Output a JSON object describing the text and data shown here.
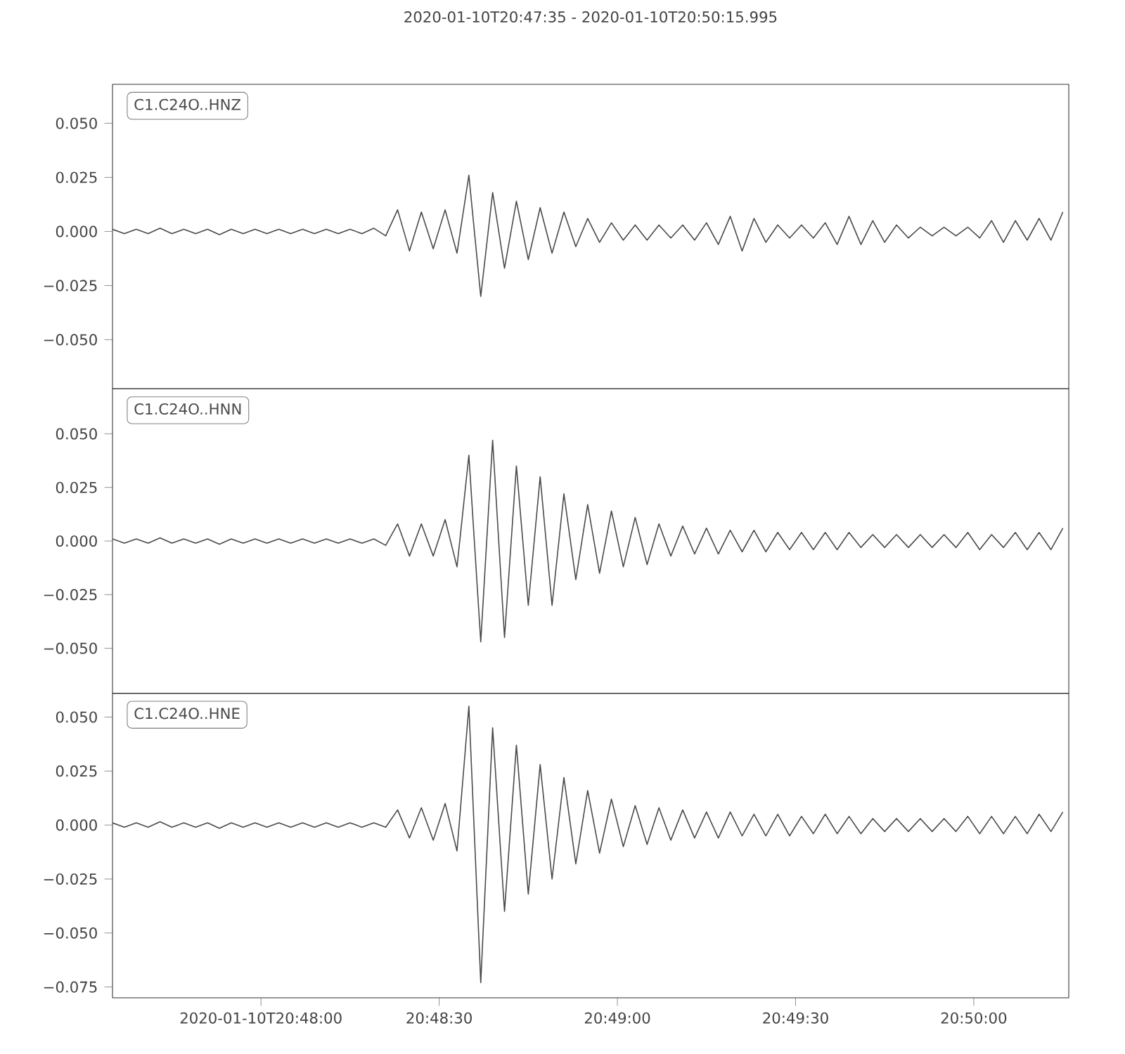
{
  "chart_data": [
    {
      "type": "line",
      "title": "2020-01-10T20:47:35  -  2020-01-10T20:50:15.995",
      "legend": "top left",
      "tick_labels": "y",
      "xlim": [
        "2020-01-10T20:47:35",
        "2020-01-10T20:50:15.995"
      ],
      "ylim": [
        -0.0727,
        0.068
      ],
      "yticks": [
        {
          "value": -0.05,
          "label": "−0.050"
        },
        {
          "value": -0.025,
          "label": "−0.025"
        },
        {
          "value": 0,
          "label": "0.000"
        },
        {
          "value": 0.025,
          "label": "0.025"
        },
        {
          "value": 0.05,
          "label": "0.050"
        }
      ],
      "x": [
        "2020-01-10T20:47:35",
        "2020-01-10T20:47:37",
        "2020-01-10T20:47:39",
        "2020-01-10T20:47:41",
        "2020-01-10T20:47:43",
        "2020-01-10T20:47:45",
        "2020-01-10T20:47:47",
        "2020-01-10T20:47:49",
        "2020-01-10T20:47:51",
        "2020-01-10T20:47:53",
        "2020-01-10T20:47:55",
        "2020-01-10T20:47:57",
        "2020-01-10T20:47:59",
        "2020-01-10T20:48:01",
        "2020-01-10T20:48:03",
        "2020-01-10T20:48:05",
        "2020-01-10T20:48:07",
        "2020-01-10T20:48:09",
        "2020-01-10T20:48:11",
        "2020-01-10T20:48:13",
        "2020-01-10T20:48:15",
        "2020-01-10T20:48:17",
        "2020-01-10T20:48:19",
        "2020-01-10T20:48:21",
        "2020-01-10T20:48:23",
        "2020-01-10T20:48:25",
        "2020-01-10T20:48:27",
        "2020-01-10T20:48:29",
        "2020-01-10T20:48:31",
        "2020-01-10T20:48:33",
        "2020-01-10T20:48:35",
        "2020-01-10T20:48:37",
        "2020-01-10T20:48:39",
        "2020-01-10T20:48:41",
        "2020-01-10T20:48:43",
        "2020-01-10T20:48:45",
        "2020-01-10T20:48:47",
        "2020-01-10T20:48:49",
        "2020-01-10T20:48:51",
        "2020-01-10T20:48:53",
        "2020-01-10T20:48:55",
        "2020-01-10T20:48:57",
        "2020-01-10T20:48:59",
        "2020-01-10T20:49:01",
        "2020-01-10T20:49:03",
        "2020-01-10T20:49:05",
        "2020-01-10T20:49:07",
        "2020-01-10T20:49:09",
        "2020-01-10T20:49:11",
        "2020-01-10T20:49:13",
        "2020-01-10T20:49:15",
        "2020-01-10T20:49:17",
        "2020-01-10T20:49:19",
        "2020-01-10T20:49:21",
        "2020-01-10T20:49:23",
        "2020-01-10T20:49:25",
        "2020-01-10T20:49:27",
        "2020-01-10T20:49:29",
        "2020-01-10T20:49:31",
        "2020-01-10T20:49:33",
        "2020-01-10T20:49:35",
        "2020-01-10T20:49:37",
        "2020-01-10T20:49:39",
        "2020-01-10T20:49:41",
        "2020-01-10T20:49:43",
        "2020-01-10T20:49:45",
        "2020-01-10T20:49:47",
        "2020-01-10T20:49:49",
        "2020-01-10T20:49:51",
        "2020-01-10T20:49:53",
        "2020-01-10T20:49:55",
        "2020-01-10T20:49:57",
        "2020-01-10T20:49:59",
        "2020-01-10T20:50:01",
        "2020-01-10T20:50:03",
        "2020-01-10T20:50:05",
        "2020-01-10T20:50:07",
        "2020-01-10T20:50:09",
        "2020-01-10T20:50:11",
        "2020-01-10T20:50:13",
        "2020-01-10T20:50:15"
      ],
      "series": [
        {
          "name": "C1.C24O..HNZ",
          "color": "#4a4a4a",
          "values": [
            0.001,
            -0.001,
            0.001,
            -0.001,
            0.0015,
            -0.001,
            0.001,
            -0.001,
            0.001,
            -0.0015,
            0.001,
            -0.001,
            0.001,
            -0.001,
            0.001,
            -0.001,
            0.001,
            -0.001,
            0.001,
            -0.001,
            0.001,
            -0.001,
            0.0015,
            -0.002,
            0.01,
            -0.009,
            0.009,
            -0.008,
            0.01,
            -0.01,
            0.026,
            -0.03,
            0.018,
            -0.017,
            0.014,
            -0.013,
            0.011,
            -0.01,
            0.009,
            -0.007,
            0.006,
            -0.005,
            0.004,
            -0.004,
            0.003,
            -0.004,
            0.003,
            -0.003,
            0.003,
            -0.004,
            0.004,
            -0.006,
            0.007,
            -0.009,
            0.006,
            -0.005,
            0.003,
            -0.003,
            0.003,
            -0.003,
            0.004,
            -0.006,
            0.007,
            -0.006,
            0.005,
            -0.005,
            0.003,
            -0.003,
            0.002,
            -0.002,
            0.002,
            -0.002,
            0.002,
            -0.003,
            0.005,
            -0.005,
            0.005,
            -0.004,
            0.006,
            -0.004,
            0.009
          ]
        }
      ]
    },
    {
      "type": "line",
      "legend": "top left",
      "tick_labels": "y",
      "xlim": [
        "2020-01-10T20:47:35",
        "2020-01-10T20:50:15.995"
      ],
      "ylim": [
        -0.071,
        0.071
      ],
      "yticks": [
        {
          "value": -0.05,
          "label": "−0.050"
        },
        {
          "value": -0.025,
          "label": "−0.025"
        },
        {
          "value": 0,
          "label": "0.000"
        },
        {
          "value": 0.025,
          "label": "0.025"
        },
        {
          "value": 0.05,
          "label": "0.050"
        }
      ],
      "x": [
        "2020-01-10T20:47:35",
        "2020-01-10T20:47:37",
        "2020-01-10T20:47:39",
        "2020-01-10T20:47:41",
        "2020-01-10T20:47:43",
        "2020-01-10T20:47:45",
        "2020-01-10T20:47:47",
        "2020-01-10T20:47:49",
        "2020-01-10T20:47:51",
        "2020-01-10T20:47:53",
        "2020-01-10T20:47:55",
        "2020-01-10T20:47:57",
        "2020-01-10T20:47:59",
        "2020-01-10T20:48:01",
        "2020-01-10T20:48:03",
        "2020-01-10T20:48:05",
        "2020-01-10T20:48:07",
        "2020-01-10T20:48:09",
        "2020-01-10T20:48:11",
        "2020-01-10T20:48:13",
        "2020-01-10T20:48:15",
        "2020-01-10T20:48:17",
        "2020-01-10T20:48:19",
        "2020-01-10T20:48:21",
        "2020-01-10T20:48:23",
        "2020-01-10T20:48:25",
        "2020-01-10T20:48:27",
        "2020-01-10T20:48:29",
        "2020-01-10T20:48:31",
        "2020-01-10T20:48:33",
        "2020-01-10T20:48:35",
        "2020-01-10T20:48:37",
        "2020-01-10T20:48:39",
        "2020-01-10T20:48:41",
        "2020-01-10T20:48:43",
        "2020-01-10T20:48:45",
        "2020-01-10T20:48:47",
        "2020-01-10T20:48:49",
        "2020-01-10T20:48:51",
        "2020-01-10T20:48:53",
        "2020-01-10T20:48:55",
        "2020-01-10T20:48:57",
        "2020-01-10T20:48:59",
        "2020-01-10T20:49:01",
        "2020-01-10T20:49:03",
        "2020-01-10T20:49:05",
        "2020-01-10T20:49:07",
        "2020-01-10T20:49:09",
        "2020-01-10T20:49:11",
        "2020-01-10T20:49:13",
        "2020-01-10T20:49:15",
        "2020-01-10T20:49:17",
        "2020-01-10T20:49:19",
        "2020-01-10T20:49:21",
        "2020-01-10T20:49:23",
        "2020-01-10T20:49:25",
        "2020-01-10T20:49:27",
        "2020-01-10T20:49:29",
        "2020-01-10T20:49:31",
        "2020-01-10T20:49:33",
        "2020-01-10T20:49:35",
        "2020-01-10T20:49:37",
        "2020-01-10T20:49:39",
        "2020-01-10T20:49:41",
        "2020-01-10T20:49:43",
        "2020-01-10T20:49:45",
        "2020-01-10T20:49:47",
        "2020-01-10T20:49:49",
        "2020-01-10T20:49:51",
        "2020-01-10T20:49:53",
        "2020-01-10T20:49:55",
        "2020-01-10T20:49:57",
        "2020-01-10T20:49:59",
        "2020-01-10T20:50:01",
        "2020-01-10T20:50:03",
        "2020-01-10T20:50:05",
        "2020-01-10T20:50:07",
        "2020-01-10T20:50:09",
        "2020-01-10T20:50:11",
        "2020-01-10T20:50:13",
        "2020-01-10T20:50:15"
      ],
      "series": [
        {
          "name": "C1.C24O..HNN",
          "color": "#4a4a4a",
          "values": [
            0.001,
            -0.001,
            0.001,
            -0.001,
            0.0015,
            -0.001,
            0.001,
            -0.001,
            0.001,
            -0.0015,
            0.001,
            -0.001,
            0.001,
            -0.001,
            0.001,
            -0.001,
            0.001,
            -0.001,
            0.001,
            -0.001,
            0.001,
            -0.001,
            0.001,
            -0.002,
            0.008,
            -0.007,
            0.008,
            -0.007,
            0.01,
            -0.012,
            0.04,
            -0.047,
            0.047,
            -0.045,
            0.035,
            -0.03,
            0.03,
            -0.03,
            0.022,
            -0.018,
            0.017,
            -0.015,
            0.014,
            -0.012,
            0.011,
            -0.011,
            0.008,
            -0.007,
            0.007,
            -0.006,
            0.006,
            -0.006,
            0.005,
            -0.005,
            0.005,
            -0.005,
            0.004,
            -0.004,
            0.004,
            -0.004,
            0.004,
            -0.004,
            0.004,
            -0.003,
            0.003,
            -0.003,
            0.003,
            -0.003,
            0.003,
            -0.003,
            0.003,
            -0.003,
            0.004,
            -0.004,
            0.003,
            -0.003,
            0.004,
            -0.004,
            0.004,
            -0.004,
            0.006
          ]
        }
      ]
    },
    {
      "type": "line",
      "legend": "top left",
      "xlim": [
        "2020-01-10T20:47:35",
        "2020-01-10T20:50:15.995"
      ],
      "xticks": [
        {
          "value": "2020-01-10T20:48:00",
          "label": "2020-01-10T20:48:00"
        },
        {
          "value": "2020-01-10T20:48:30",
          "label": "20:48:30"
        },
        {
          "value": "2020-01-10T20:49:00",
          "label": "20:49:00"
        },
        {
          "value": "2020-01-10T20:49:30",
          "label": "20:49:30"
        },
        {
          "value": "2020-01-10T20:50:00",
          "label": "20:50:00"
        }
      ],
      "ylim": [
        -0.08,
        0.061
      ],
      "yticks": [
        {
          "value": -0.075,
          "label": "−0.075"
        },
        {
          "value": -0.05,
          "label": "−0.050"
        },
        {
          "value": -0.025,
          "label": "−0.025"
        },
        {
          "value": 0,
          "label": "0.000"
        },
        {
          "value": 0.025,
          "label": "0.025"
        },
        {
          "value": 0.05,
          "label": "0.050"
        }
      ],
      "x": [
        "2020-01-10T20:47:35",
        "2020-01-10T20:47:37",
        "2020-01-10T20:47:39",
        "2020-01-10T20:47:41",
        "2020-01-10T20:47:43",
        "2020-01-10T20:47:45",
        "2020-01-10T20:47:47",
        "2020-01-10T20:47:49",
        "2020-01-10T20:47:51",
        "2020-01-10T20:47:53",
        "2020-01-10T20:47:55",
        "2020-01-10T20:47:57",
        "2020-01-10T20:47:59",
        "2020-01-10T20:48:01",
        "2020-01-10T20:48:03",
        "2020-01-10T20:48:05",
        "2020-01-10T20:48:07",
        "2020-01-10T20:48:09",
        "2020-01-10T20:48:11",
        "2020-01-10T20:48:13",
        "2020-01-10T20:48:15",
        "2020-01-10T20:48:17",
        "2020-01-10T20:48:19",
        "2020-01-10T20:48:21",
        "2020-01-10T20:48:23",
        "2020-01-10T20:48:25",
        "2020-01-10T20:48:27",
        "2020-01-10T20:48:29",
        "2020-01-10T20:48:31",
        "2020-01-10T20:48:33",
        "2020-01-10T20:48:35",
        "2020-01-10T20:48:37",
        "2020-01-10T20:48:39",
        "2020-01-10T20:48:41",
        "2020-01-10T20:48:43",
        "2020-01-10T20:48:45",
        "2020-01-10T20:48:47",
        "2020-01-10T20:48:49",
        "2020-01-10T20:48:51",
        "2020-01-10T20:48:53",
        "2020-01-10T20:48:55",
        "2020-01-10T20:48:57",
        "2020-01-10T20:48:59",
        "2020-01-10T20:49:01",
        "2020-01-10T20:49:03",
        "2020-01-10T20:49:05",
        "2020-01-10T20:49:07",
        "2020-01-10T20:49:09",
        "2020-01-10T20:49:11",
        "2020-01-10T20:49:13",
        "2020-01-10T20:49:15",
        "2020-01-10T20:49:17",
        "2020-01-10T20:49:19",
        "2020-01-10T20:49:21",
        "2020-01-10T20:49:23",
        "2020-01-10T20:49:25",
        "2020-01-10T20:49:27",
        "2020-01-10T20:49:29",
        "2020-01-10T20:49:31",
        "2020-01-10T20:49:33",
        "2020-01-10T20:49:35",
        "2020-01-10T20:49:37",
        "2020-01-10T20:49:39",
        "2020-01-10T20:49:41",
        "2020-01-10T20:49:43",
        "2020-01-10T20:49:45",
        "2020-01-10T20:49:47",
        "2020-01-10T20:49:49",
        "2020-01-10T20:49:51",
        "2020-01-10T20:49:53",
        "2020-01-10T20:49:55",
        "2020-01-10T20:49:57",
        "2020-01-10T20:49:59",
        "2020-01-10T20:50:01",
        "2020-01-10T20:50:03",
        "2020-01-10T20:50:05",
        "2020-01-10T20:50:07",
        "2020-01-10T20:50:09",
        "2020-01-10T20:50:11",
        "2020-01-10T20:50:13",
        "2020-01-10T20:50:15"
      ],
      "series": [
        {
          "name": "C1.C24O..HNE",
          "color": "#4a4a4a",
          "values": [
            0.001,
            -0.001,
            0.001,
            -0.001,
            0.0015,
            -0.001,
            0.001,
            -0.001,
            0.001,
            -0.0015,
            0.001,
            -0.001,
            0.001,
            -0.001,
            0.001,
            -0.001,
            0.001,
            -0.001,
            0.001,
            -0.001,
            0.001,
            -0.001,
            0.001,
            -0.001,
            0.007,
            -0.006,
            0.008,
            -0.007,
            0.01,
            -0.012,
            0.055,
            -0.073,
            0.045,
            -0.04,
            0.037,
            -0.032,
            0.028,
            -0.025,
            0.022,
            -0.018,
            0.016,
            -0.013,
            0.012,
            -0.01,
            0.009,
            -0.009,
            0.008,
            -0.007,
            0.007,
            -0.006,
            0.006,
            -0.006,
            0.006,
            -0.005,
            0.005,
            -0.005,
            0.005,
            -0.005,
            0.004,
            -0.004,
            0.005,
            -0.004,
            0.004,
            -0.004,
            0.003,
            -0.003,
            0.003,
            -0.003,
            0.003,
            -0.003,
            0.003,
            -0.003,
            0.004,
            -0.004,
            0.004,
            -0.004,
            0.004,
            -0.004,
            0.005,
            -0.003,
            0.006
          ]
        }
      ]
    }
  ]
}
